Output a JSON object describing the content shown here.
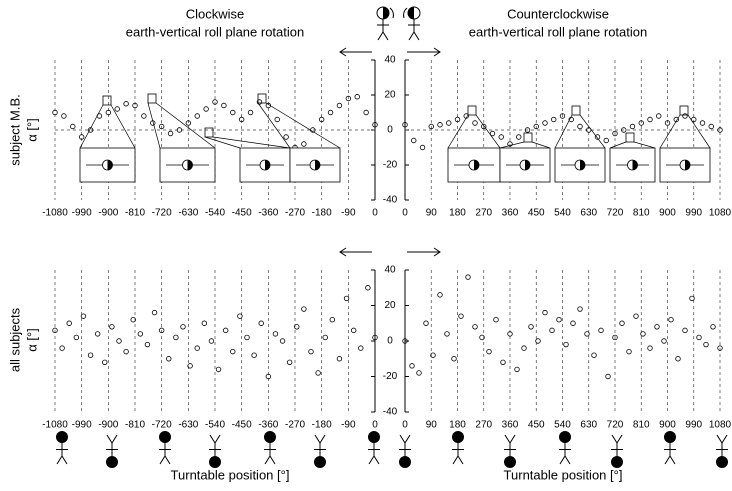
{
  "chart_data": [
    {
      "type": "scatter",
      "title": "Clockwise",
      "subtitle": "earth-vertical roll plane rotation",
      "ylabel": [
        "subject M.B.",
        "α [°]"
      ],
      "x": [
        -1080,
        -1050,
        -1020,
        -990,
        -960,
        -930,
        -900,
        -870,
        -840,
        -810,
        -780,
        -750,
        -720,
        -690,
        -660,
        -630,
        -600,
        -570,
        -540,
        -510,
        -480,
        -450,
        -420,
        -390,
        -360,
        -330,
        -300,
        -270,
        -240,
        -210,
        -180,
        -150,
        -120,
        -90,
        -60,
        -30,
        0
      ],
      "values": [
        10,
        8,
        2,
        -4,
        0,
        8,
        10,
        12,
        15,
        14,
        8,
        4,
        2,
        -2,
        0,
        4,
        8,
        12,
        16,
        14,
        10,
        6,
        10,
        16,
        14,
        6,
        -4,
        -10,
        -8,
        0,
        6,
        10,
        14,
        18,
        19,
        10,
        3
      ],
      "color": "#000000",
      "xlim": [
        -1080,
        0
      ],
      "ylim": [
        -40,
        40
      ],
      "xticks": [
        -1080,
        -990,
        -900,
        -810,
        -720,
        -630,
        -540,
        -450,
        -360,
        -270,
        -180,
        -90,
        0
      ],
      "yticks": [
        40,
        20,
        0,
        -20,
        -40
      ],
      "zero_line": true
    },
    {
      "type": "scatter",
      "title": "Counterclockwise",
      "subtitle": "earth-vertical roll plane rotation",
      "x": [
        0,
        30,
        60,
        90,
        120,
        150,
        180,
        210,
        240,
        270,
        300,
        330,
        360,
        390,
        420,
        450,
        480,
        510,
        540,
        570,
        600,
        630,
        660,
        690,
        720,
        750,
        780,
        810,
        840,
        870,
        900,
        930,
        960,
        990,
        1020,
        1050,
        1080
      ],
      "values": [
        3,
        -6,
        -10,
        2,
        3,
        4,
        6,
        8,
        4,
        2,
        -2,
        -4,
        -8,
        -4,
        0,
        2,
        4,
        6,
        8,
        6,
        2,
        0,
        -4,
        -6,
        -2,
        0,
        2,
        4,
        6,
        8,
        4,
        6,
        8,
        6,
        4,
        2,
        0
      ],
      "color": "#000000",
      "xlim": [
        0,
        1080
      ],
      "ylim": [
        -40,
        40
      ],
      "xticks": [
        0,
        90,
        180,
        270,
        360,
        450,
        540,
        630,
        720,
        810,
        900,
        990,
        1080
      ],
      "yticks": [
        40,
        20,
        0,
        -20,
        -40
      ],
      "zero_line": true
    },
    {
      "type": "scatter",
      "ylabel": [
        "all subjects",
        "α [°]"
      ],
      "xlabel": "Turntable position [°]",
      "x": [
        -1080,
        -1056,
        -1032,
        -1008,
        -984,
        -960,
        -936,
        -912,
        -888,
        -864,
        -840,
        -816,
        -792,
        -768,
        -744,
        -720,
        -696,
        -672,
        -648,
        -624,
        -600,
        -576,
        -552,
        -528,
        -504,
        -480,
        -456,
        -432,
        -408,
        -384,
        -360,
        -336,
        -312,
        -288,
        -264,
        -240,
        -216,
        -192,
        -168,
        -144,
        -120,
        -96,
        -72,
        -48,
        -24,
        0
      ],
      "values": [
        6,
        -4,
        10,
        2,
        14,
        -8,
        4,
        -12,
        8,
        0,
        -6,
        12,
        4,
        -2,
        16,
        6,
        -10,
        2,
        8,
        -14,
        -4,
        10,
        0,
        -16,
        6,
        -6,
        14,
        2,
        -8,
        10,
        -20,
        4,
        0,
        -12,
        8,
        18,
        -6,
        -18,
        2,
        12,
        -10,
        24,
        6,
        -4,
        30,
        2
      ],
      "color": "#000000",
      "xlim": [
        -1080,
        0
      ],
      "ylim": [
        -40,
        40
      ],
      "xticks": [
        -1080,
        -990,
        -900,
        -810,
        -720,
        -630,
        -540,
        -450,
        -360,
        -270,
        -180,
        -90,
        0
      ],
      "yticks": [
        40,
        20,
        0,
        -20,
        -40
      ]
    },
    {
      "type": "scatter",
      "xlabel": "Turntable position [°]",
      "x": [
        0,
        24,
        48,
        72,
        96,
        120,
        144,
        168,
        192,
        216,
        240,
        264,
        288,
        312,
        336,
        360,
        384,
        408,
        432,
        456,
        480,
        504,
        528,
        552,
        576,
        600,
        624,
        648,
        672,
        696,
        720,
        744,
        768,
        792,
        816,
        840,
        864,
        888,
        912,
        936,
        960,
        984,
        1008,
        1032,
        1056,
        1080
      ],
      "values": [
        0,
        -14,
        -18,
        10,
        -8,
        26,
        4,
        -10,
        14,
        36,
        8,
        2,
        -6,
        12,
        -12,
        4,
        -16,
        -4,
        8,
        0,
        16,
        6,
        12,
        -2,
        10,
        18,
        4,
        -8,
        6,
        -20,
        2,
        10,
        -6,
        14,
        4,
        -4,
        8,
        0,
        12,
        -10,
        6,
        24,
        2,
        -2,
        8,
        -4
      ],
      "color": "#000000",
      "xlim": [
        0,
        1080
      ],
      "ylim": [
        -40,
        40
      ],
      "xticks": [
        0,
        90,
        180,
        270,
        360,
        450,
        540,
        630,
        720,
        810,
        900,
        990,
        1080
      ],
      "yticks": [
        40,
        20,
        0,
        -20,
        -40
      ]
    }
  ]
}
